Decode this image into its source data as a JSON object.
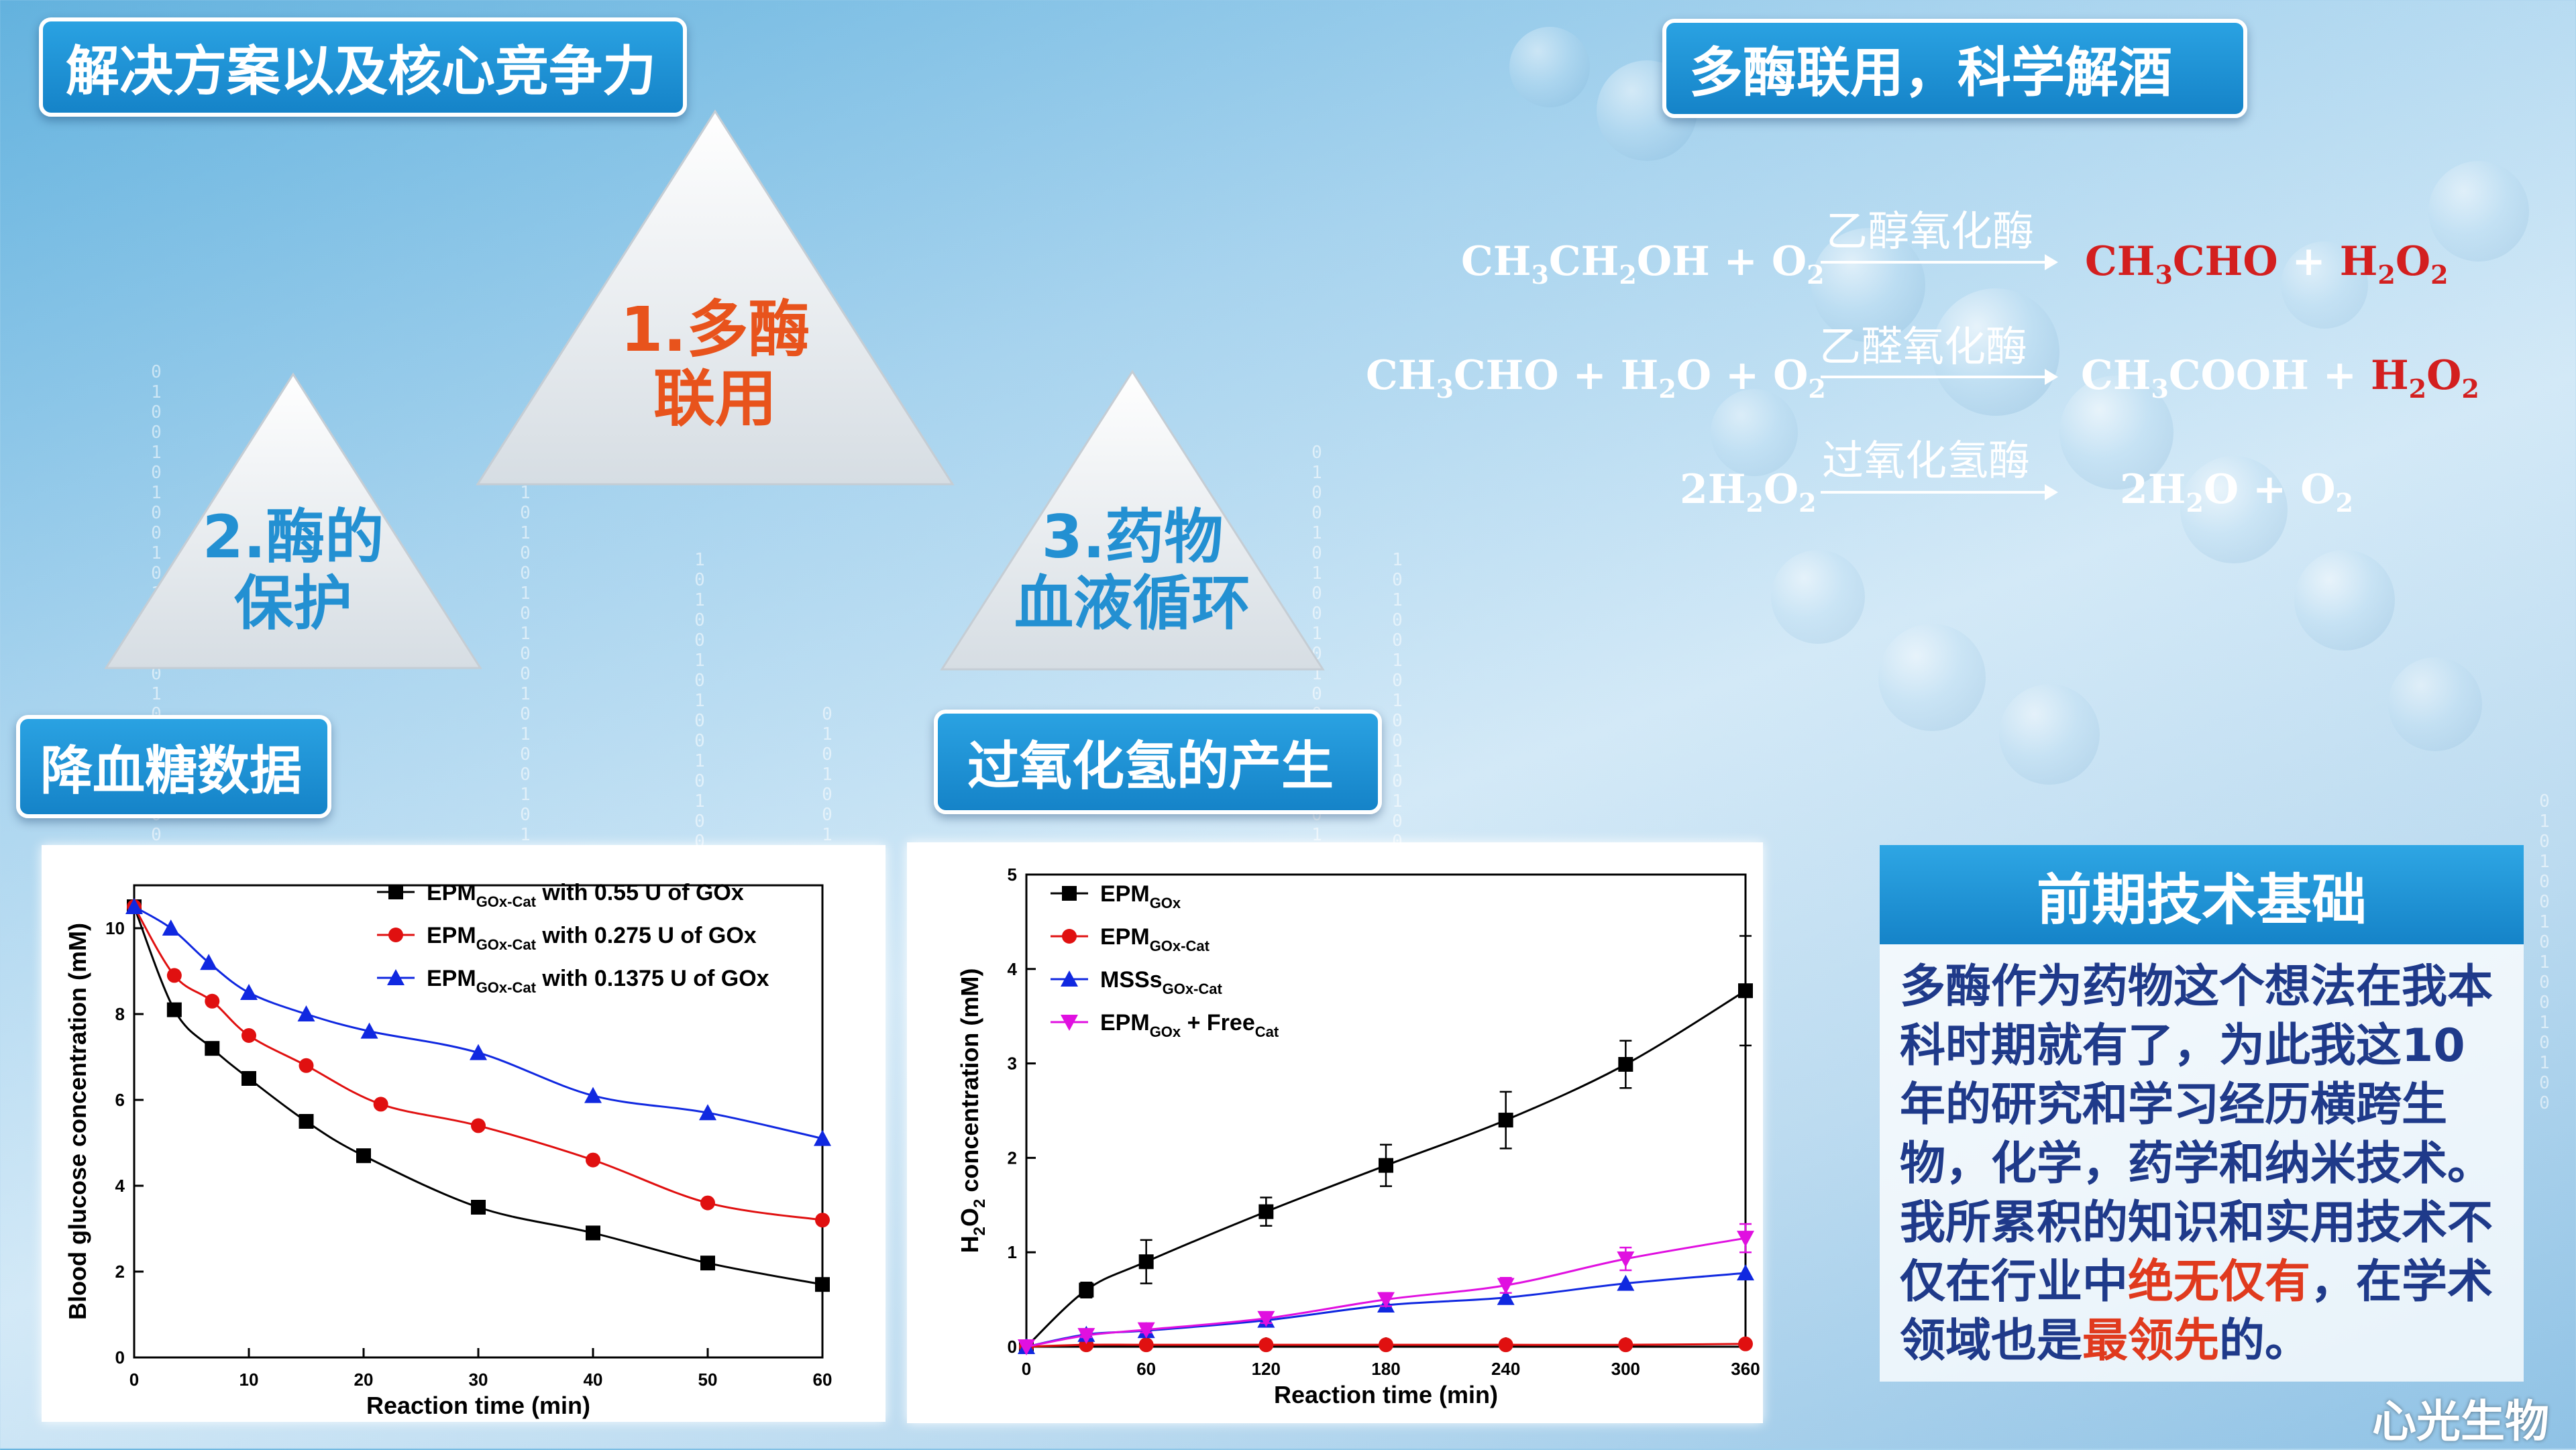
{
  "slide": {
    "main_title": "解决方案以及核心竞争力",
    "right_title": "多酶联用，科学解酒",
    "triangle_1": {
      "line1": "1.多酶",
      "line2": "联用"
    },
    "triangle_2": {
      "line1": "2.酶的",
      "line2": "保护"
    },
    "triangle_3": {
      "line1": "3.药物",
      "line2": "血液循环"
    },
    "section_glucose": "降血糖数据",
    "section_h2o2": "过氧化氢的产生",
    "logo": "心光生物"
  },
  "reactions": [
    {
      "enzyme": "乙醇氧化酶"
    },
    {
      "enzyme": "乙醛氧化酶"
    },
    {
      "enzyme": "过氧化氢酶"
    }
  ],
  "info": {
    "header": "前期技术基础",
    "text_a": "多酶作为药物这个想法在我本科时期就有了，为此我这10年的研究和学习经历横跨生物，化学，药学和纳米技术。我所累积的知识和实用技术不仅在行业中",
    "highlight_1": "绝无仅有",
    "text_b": "，在学术领域也是",
    "highlight_2": "最领先",
    "text_c": "的。"
  },
  "chart_data": [
    {
      "type": "line",
      "xlabel": "Reaction time (min)",
      "ylabel": "Blood glucose concentration (mM)",
      "xlim": [
        0,
        60
      ],
      "ylim": [
        0,
        11
      ],
      "xticks": [
        0,
        10,
        20,
        30,
        40,
        50,
        60
      ],
      "yticks": [
        0,
        2,
        4,
        6,
        8,
        10
      ],
      "legend_position": "top-right",
      "series": [
        {
          "name_main": "EPM",
          "name_sub": "GOx-Cat",
          "name_tail": " with 0.55 U of GOx",
          "color": "#000000",
          "marker": "square",
          "x": [
            0,
            3.5,
            6.8,
            10,
            15,
            20,
            30,
            40,
            50,
            60
          ],
          "y": [
            10.5,
            8.1,
            7.2,
            6.5,
            5.5,
            4.7,
            3.5,
            2.9,
            2.2,
            1.7
          ]
        },
        {
          "name_main": "EPM",
          "name_sub": "GOx-Cat",
          "name_tail": " with 0.275 U of GOx",
          "color": "#e01010",
          "marker": "circle",
          "x": [
            0,
            3.5,
            6.8,
            10,
            15,
            21.5,
            30,
            40,
            50,
            60
          ],
          "y": [
            10.5,
            8.9,
            8.3,
            7.5,
            6.8,
            5.9,
            5.4,
            4.6,
            3.6,
            3.2
          ]
        },
        {
          "name_main": "EPM",
          "name_sub": "GOx-Cat",
          "name_tail": " with 0.1375 U of GOx",
          "color": "#1028e0",
          "marker": "triangle",
          "x": [
            0,
            3.2,
            6.5,
            10,
            15,
            20.5,
            30,
            40,
            50,
            60
          ],
          "y": [
            10.5,
            10.0,
            9.2,
            8.5,
            8.0,
            7.6,
            7.1,
            6.1,
            5.7,
            5.1
          ]
        }
      ]
    },
    {
      "type": "line",
      "xlabel": "Reaction time (min)",
      "ylabel_parts": [
        "H",
        "2",
        "O",
        "2",
        " concentration (mM)"
      ],
      "xlim": [
        0,
        360
      ],
      "ylim": [
        0,
        5
      ],
      "xticks": [
        0,
        60,
        120,
        180,
        240,
        300,
        360
      ],
      "yticks": [
        0,
        1,
        2,
        3,
        4,
        5
      ],
      "legend_position": "top-left",
      "series": [
        {
          "name_main": "EPM",
          "name_sub": "GOx",
          "name_tail": "",
          "color": "#000000",
          "marker": "square",
          "x": [
            0,
            30,
            60,
            120,
            180,
            240,
            300,
            360
          ],
          "y": [
            0,
            0.6,
            0.9,
            1.43,
            1.92,
            2.4,
            2.99,
            3.77
          ],
          "err": [
            0,
            0.08,
            0.23,
            0.15,
            0.22,
            0.3,
            0.25,
            0.58
          ]
        },
        {
          "name_main": "EPM",
          "name_sub": "GOx-Cat",
          "name_tail": "",
          "color": "#e01010",
          "marker": "circle",
          "x": [
            0,
            30,
            60,
            120,
            180,
            240,
            300,
            360
          ],
          "y": [
            0,
            0.02,
            0.02,
            0.02,
            0.02,
            0.02,
            0.02,
            0.03
          ]
        },
        {
          "name_main": "MSSs",
          "name_sub": "GOx-Cat",
          "name_tail": "",
          "color": "#1028e0",
          "marker": "triangle",
          "x": [
            0,
            30,
            60,
            120,
            180,
            240,
            300,
            360
          ],
          "y": [
            0,
            0.13,
            0.17,
            0.28,
            0.44,
            0.52,
            0.67,
            0.78
          ]
        },
        {
          "name_main": "EPM",
          "name_sub": "GOx",
          "name_tail": " + Free",
          "name_sub2": "Cat",
          "color": "#e010e0",
          "marker": "triangle-down",
          "x": [
            0,
            30,
            60,
            120,
            180,
            240,
            300,
            360
          ],
          "y": [
            0,
            0.12,
            0.18,
            0.3,
            0.5,
            0.65,
            0.93,
            1.15
          ],
          "err": [
            0,
            0.02,
            0.03,
            0.05,
            0.07,
            0.08,
            0.12,
            0.15
          ]
        }
      ]
    }
  ]
}
